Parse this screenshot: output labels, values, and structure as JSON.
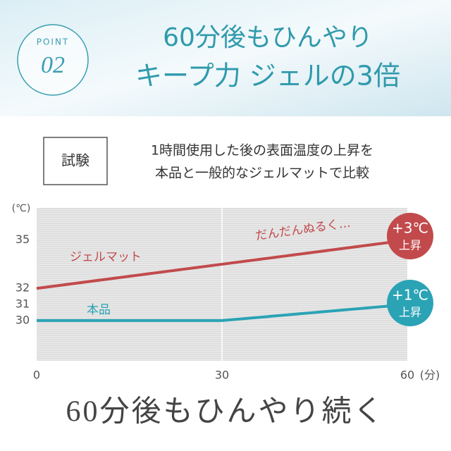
{
  "header": {
    "badge": "POINT",
    "number": "02",
    "title_lines": [
      "60分後もひんやり",
      "キープ力 ジェルの3倍"
    ]
  },
  "test": {
    "label": "試験",
    "description": [
      "1時間使用した後の表面温度の上昇を",
      "本品と一般的なジェルマットで比較"
    ]
  },
  "chart_data": {
    "type": "line",
    "x": [
      0,
      30,
      60
    ],
    "xlim": [
      0,
      60
    ],
    "xticks": [
      0,
      30,
      60
    ],
    "x_unit": "(分)",
    "ylim": [
      27.5,
      37
    ],
    "yticks": [
      30,
      31,
      32,
      35
    ],
    "y_unit": "(℃)",
    "series": [
      {
        "name": "ジェルマット",
        "color": "#c24a4c",
        "values": [
          32,
          33.5,
          35
        ],
        "change": "+3℃",
        "change_label": "上昇"
      },
      {
        "name": "本品",
        "color": "#2aa3b5",
        "values": [
          30,
          30,
          31
        ],
        "change": "+1℃",
        "change_label": "上昇"
      }
    ],
    "annotation": "だんだんぬるく…"
  },
  "caption": "60分後もひんやり続く"
}
